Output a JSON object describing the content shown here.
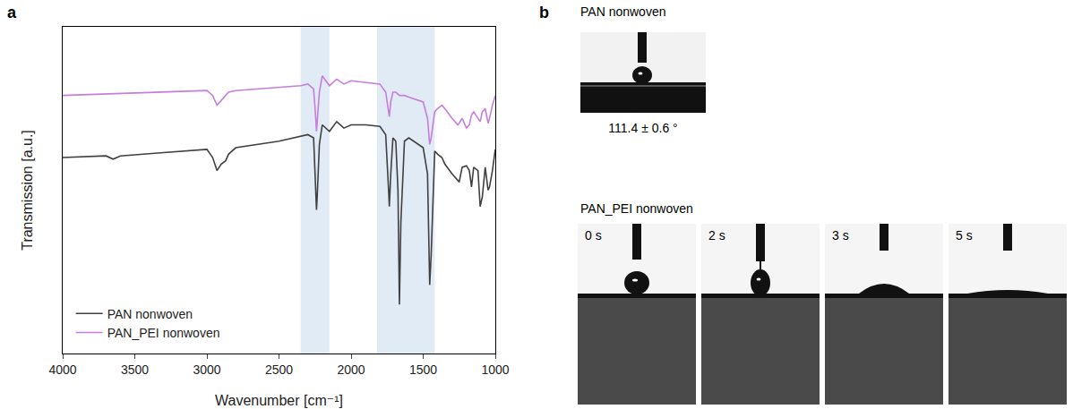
{
  "chart_data": {
    "type": "line",
    "x_label": "Wavenumber [cm⁻¹]",
    "y_label": "Transmission [a.u.]",
    "x": [
      4000,
      3700,
      3650,
      3600,
      3300,
      3000,
      2960,
      2930,
      2900,
      2870,
      2850,
      2800,
      2500,
      2400,
      2350,
      2300,
      2260,
      2245,
      2240,
      2235,
      2220,
      2200,
      2150,
      2100,
      2050,
      2000,
      1900,
      1800,
      1760,
      1740,
      1735,
      1725,
      1710,
      1690,
      1675,
      1665,
      1655,
      1630,
      1600,
      1500,
      1470,
      1455,
      1445,
      1420,
      1400,
      1370,
      1350,
      1300,
      1260,
      1250,
      1230,
      1200,
      1180,
      1165,
      1150,
      1120,
      1105,
      1090,
      1070,
      1050,
      1040,
      1020,
      1000
    ],
    "series": [
      {
        "name": "PAN nonwoven",
        "color": "#404040",
        "values": [
          60,
          60.5,
          59.5,
          60.5,
          61.5,
          62.5,
          60,
          56,
          58,
          59,
          61,
          63,
          65,
          66,
          66.5,
          67,
          66,
          50,
          44,
          48,
          64,
          70,
          68,
          71,
          69,
          70,
          70,
          69.5,
          67,
          50,
          45,
          55,
          66,
          65,
          50,
          15,
          40,
          65,
          66,
          63,
          55,
          21,
          30,
          62,
          61,
          60,
          58,
          55,
          53,
          52.5,
          57,
          57.5,
          56,
          51,
          57,
          56,
          45,
          48,
          57,
          50,
          51,
          56,
          62.5
        ]
      },
      {
        "name": "PAN_PEI nonwoven",
        "color": "#c77dde",
        "values": [
          79,
          79.5,
          79.5,
          79.5,
          80,
          80.5,
          79,
          76,
          77.5,
          79,
          80,
          80.5,
          81.5,
          82,
          82,
          82.5,
          81,
          72,
          68,
          71,
          80,
          85,
          82,
          84,
          82.5,
          83.5,
          83,
          82.5,
          80,
          74,
          72.5,
          77,
          80,
          80,
          79.5,
          79,
          79,
          79,
          78.5,
          77,
          72,
          64,
          66,
          74,
          75,
          76,
          75,
          72,
          70,
          70.5,
          72,
          69,
          70,
          73,
          74,
          72,
          71,
          74,
          75,
          70.5,
          72,
          76,
          79
        ]
      }
    ],
    "xlim": [
      4000,
      1000
    ],
    "xticks": [
      4000,
      3500,
      3000,
      2500,
      2000,
      1500,
      1000
    ],
    "ylim": [
      0,
      100
    ],
    "tick_labels": "x",
    "legend": "lower left",
    "bands": [
      [
        2350,
        2150
      ],
      [
        1820,
        1420
      ]
    ]
  },
  "panel_labels": [
    "a",
    "b"
  ],
  "images": {
    "top": {
      "title": "PAN nonwoven",
      "caption": "111.4 ± 0.6 °"
    },
    "bottom": {
      "title": "PAN_PEI nonwoven",
      "frames": [
        "0 s",
        "2 s",
        "3 s",
        "5 s"
      ]
    }
  }
}
